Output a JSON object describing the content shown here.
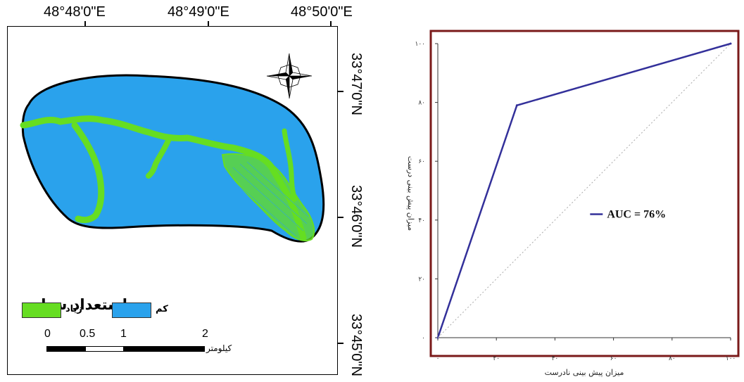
{
  "map": {
    "lon_labels": [
      "48°48'0\"E",
      "48°49'0\"E",
      "48°50'0\"E"
    ],
    "lat_labels": [
      "33°47'0\"N",
      "33°46'0\"N",
      "33°45'0\"N"
    ],
    "legend": {
      "title": "استعداد سیل",
      "items": [
        {
          "label": "زیاد",
          "color": "#66dd22"
        },
        {
          "label": "کم",
          "color": "#2aa2ec"
        }
      ]
    },
    "scale_bar": {
      "ticks": [
        "0",
        "0.5",
        "1",
        "2"
      ],
      "unit": "کیلومتر"
    },
    "colors": {
      "basin": "#2aa2ec",
      "high": "#66dd22",
      "outline": "#000000"
    },
    "north_arrow_icon": "compass-rose-icon"
  },
  "chart_data": {
    "type": "line",
    "xlabel": "میزان پیش بینی نادرست",
    "ylabel": "میزان پیش بینی درست",
    "x_ticks": [
      "۰",
      "۲۰",
      "۴۰",
      "۶۰",
      "۸۰",
      "۱۰۰"
    ],
    "y_ticks": [
      "۰",
      "۲۰",
      "۴۰",
      "۶۰",
      "۸۰",
      "۱۰۰"
    ],
    "xlim": [
      0,
      100
    ],
    "ylim": [
      0,
      100
    ],
    "series": [
      {
        "name": "AUC = 76%",
        "x": [
          0,
          27,
          100
        ],
        "y": [
          0,
          79,
          100
        ],
        "color": "#33309a"
      },
      {
        "x": [
          0,
          100
        ],
        "y": [
          0,
          100
        ],
        "color": "#aaaaaa",
        "style": "dotted"
      }
    ],
    "legend_text": "AUC = 76%",
    "legend_placement": "right-middle",
    "frame_color": "#7a1a1a",
    "grid": false
  }
}
